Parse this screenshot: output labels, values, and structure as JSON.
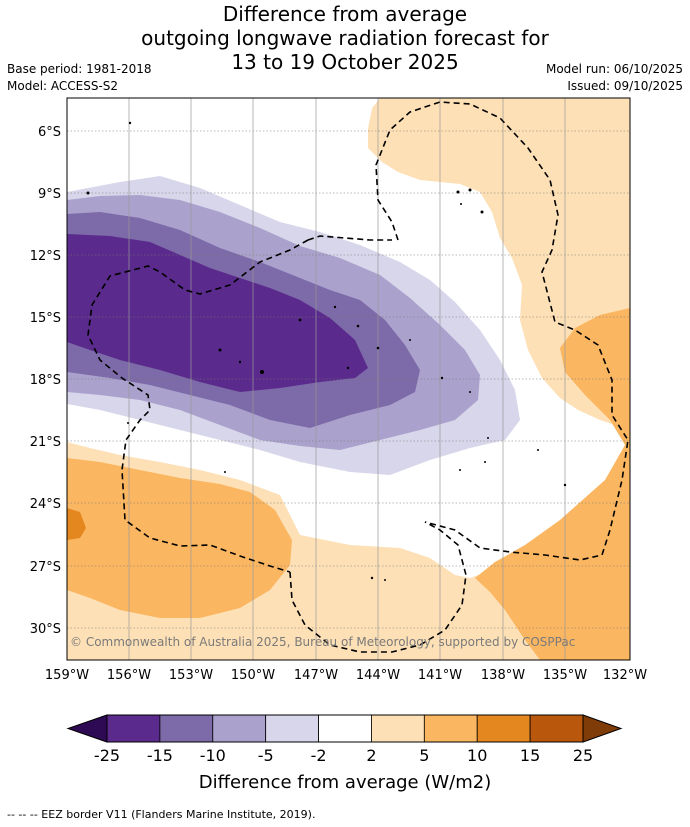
{
  "title": {
    "line1": "Difference from average",
    "line2": "outgoing longwave radiation forecast for",
    "line3": "13 to 19 October 2025"
  },
  "meta": {
    "base_period": "Base period: 1981-2018",
    "model": "Model: ACCESS-S2",
    "model_run": "Model run: 06/10/2025",
    "issued": "Issued: 09/10/2025"
  },
  "map": {
    "lat_labels": [
      "6°S",
      "9°S",
      "12°S",
      "15°S",
      "18°S",
      "21°S",
      "24°S",
      "27°S",
      "30°S"
    ],
    "lon_labels": [
      "159°W",
      "156°W",
      "153°W",
      "150°W",
      "147°W",
      "144°W",
      "141°W",
      "138°W",
      "135°W",
      "132°W"
    ],
    "copyright": "© Commonwealth of Australia 2025, Bureau of Meteorology, supported by COSPPac"
  },
  "colorbar": {
    "ticks": [
      "-25",
      "-15",
      "-10",
      "-5",
      "-2",
      "2",
      "5",
      "10",
      "15",
      "25"
    ],
    "title": "Difference from average (W/m2)",
    "colors": [
      "#5a2a8c",
      "#7d6aa8",
      "#aaa2cc",
      "#d8d6ea",
      "#ffffff",
      "#fde0b6",
      "#fbb661",
      "#e4871f",
      "#b9570c"
    ],
    "low_extend_color": "#2e0a55",
    "high_extend_color": "#7f3b08"
  },
  "footer": {
    "legend": "--  --  -- EEZ border V11 (Flanders Marine Institute, 2019)."
  }
}
